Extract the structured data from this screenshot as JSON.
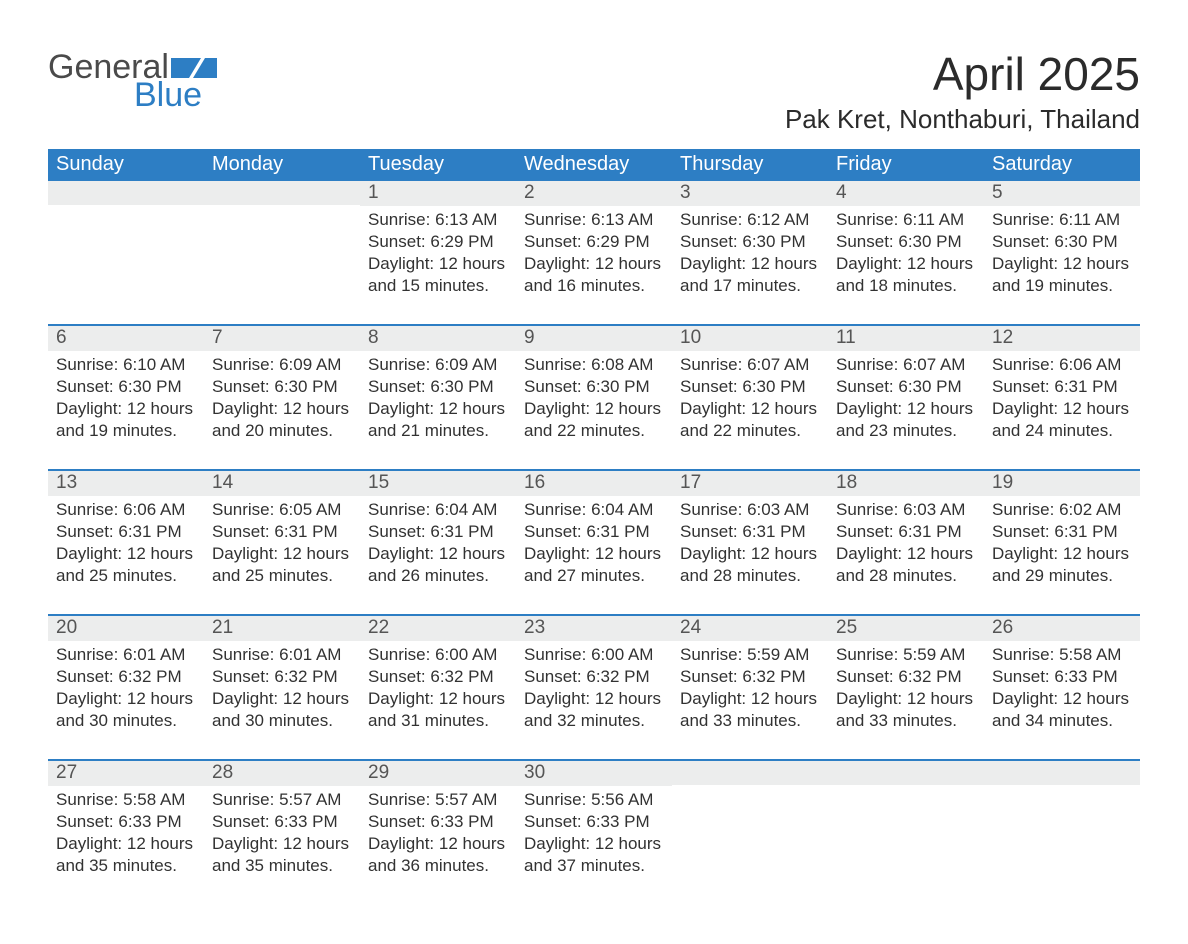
{
  "colors": {
    "blue_header": "#2d7ec4",
    "blue_accent": "#2d7ec4",
    "row_stripe": "#eceded",
    "text": "#3a3a3a",
    "date_text": "#555555",
    "background": "#ffffff",
    "logo_dark": "#4a4a4a",
    "logo_blue": "#2d7ec4"
  },
  "typography": {
    "title_fontsize": 46,
    "location_fontsize": 26,
    "dayheader_fontsize": 20,
    "date_fontsize": 19,
    "body_fontsize": 17,
    "logo_fontsize": 34,
    "font_family": "Segoe UI"
  },
  "logo": {
    "word1": "General",
    "word2": "Blue"
  },
  "header": {
    "title": "April 2025",
    "location": "Pak Kret, Nonthaburi, Thailand"
  },
  "day_names": [
    "Sunday",
    "Monday",
    "Tuesday",
    "Wednesday",
    "Thursday",
    "Friday",
    "Saturday"
  ],
  "labels": {
    "sunrise_prefix": "Sunrise: ",
    "sunset_prefix": "Sunset: ",
    "daylight_prefix": "Daylight: "
  },
  "weeks": [
    [
      null,
      null,
      {
        "date": "1",
        "sunrise": "6:13 AM",
        "sunset": "6:29 PM",
        "daylight": "12 hours and 15 minutes."
      },
      {
        "date": "2",
        "sunrise": "6:13 AM",
        "sunset": "6:29 PM",
        "daylight": "12 hours and 16 minutes."
      },
      {
        "date": "3",
        "sunrise": "6:12 AM",
        "sunset": "6:30 PM",
        "daylight": "12 hours and 17 minutes."
      },
      {
        "date": "4",
        "sunrise": "6:11 AM",
        "sunset": "6:30 PM",
        "daylight": "12 hours and 18 minutes."
      },
      {
        "date": "5",
        "sunrise": "6:11 AM",
        "sunset": "6:30 PM",
        "daylight": "12 hours and 19 minutes."
      }
    ],
    [
      {
        "date": "6",
        "sunrise": "6:10 AM",
        "sunset": "6:30 PM",
        "daylight": "12 hours and 19 minutes."
      },
      {
        "date": "7",
        "sunrise": "6:09 AM",
        "sunset": "6:30 PM",
        "daylight": "12 hours and 20 minutes."
      },
      {
        "date": "8",
        "sunrise": "6:09 AM",
        "sunset": "6:30 PM",
        "daylight": "12 hours and 21 minutes."
      },
      {
        "date": "9",
        "sunrise": "6:08 AM",
        "sunset": "6:30 PM",
        "daylight": "12 hours and 22 minutes."
      },
      {
        "date": "10",
        "sunrise": "6:07 AM",
        "sunset": "6:30 PM",
        "daylight": "12 hours and 22 minutes."
      },
      {
        "date": "11",
        "sunrise": "6:07 AM",
        "sunset": "6:30 PM",
        "daylight": "12 hours and 23 minutes."
      },
      {
        "date": "12",
        "sunrise": "6:06 AM",
        "sunset": "6:31 PM",
        "daylight": "12 hours and 24 minutes."
      }
    ],
    [
      {
        "date": "13",
        "sunrise": "6:06 AM",
        "sunset": "6:31 PM",
        "daylight": "12 hours and 25 minutes."
      },
      {
        "date": "14",
        "sunrise": "6:05 AM",
        "sunset": "6:31 PM",
        "daylight": "12 hours and 25 minutes."
      },
      {
        "date": "15",
        "sunrise": "6:04 AM",
        "sunset": "6:31 PM",
        "daylight": "12 hours and 26 minutes."
      },
      {
        "date": "16",
        "sunrise": "6:04 AM",
        "sunset": "6:31 PM",
        "daylight": "12 hours and 27 minutes."
      },
      {
        "date": "17",
        "sunrise": "6:03 AM",
        "sunset": "6:31 PM",
        "daylight": "12 hours and 28 minutes."
      },
      {
        "date": "18",
        "sunrise": "6:03 AM",
        "sunset": "6:31 PM",
        "daylight": "12 hours and 28 minutes."
      },
      {
        "date": "19",
        "sunrise": "6:02 AM",
        "sunset": "6:31 PM",
        "daylight": "12 hours and 29 minutes."
      }
    ],
    [
      {
        "date": "20",
        "sunrise": "6:01 AM",
        "sunset": "6:32 PM",
        "daylight": "12 hours and 30 minutes."
      },
      {
        "date": "21",
        "sunrise": "6:01 AM",
        "sunset": "6:32 PM",
        "daylight": "12 hours and 30 minutes."
      },
      {
        "date": "22",
        "sunrise": "6:00 AM",
        "sunset": "6:32 PM",
        "daylight": "12 hours and 31 minutes."
      },
      {
        "date": "23",
        "sunrise": "6:00 AM",
        "sunset": "6:32 PM",
        "daylight": "12 hours and 32 minutes."
      },
      {
        "date": "24",
        "sunrise": "5:59 AM",
        "sunset": "6:32 PM",
        "daylight": "12 hours and 33 minutes."
      },
      {
        "date": "25",
        "sunrise": "5:59 AM",
        "sunset": "6:32 PM",
        "daylight": "12 hours and 33 minutes."
      },
      {
        "date": "26",
        "sunrise": "5:58 AM",
        "sunset": "6:33 PM",
        "daylight": "12 hours and 34 minutes."
      }
    ],
    [
      {
        "date": "27",
        "sunrise": "5:58 AM",
        "sunset": "6:33 PM",
        "daylight": "12 hours and 35 minutes."
      },
      {
        "date": "28",
        "sunrise": "5:57 AM",
        "sunset": "6:33 PM",
        "daylight": "12 hours and 35 minutes."
      },
      {
        "date": "29",
        "sunrise": "5:57 AM",
        "sunset": "6:33 PM",
        "daylight": "12 hours and 36 minutes."
      },
      {
        "date": "30",
        "sunrise": "5:56 AM",
        "sunset": "6:33 PM",
        "daylight": "12 hours and 37 minutes."
      },
      null,
      null,
      null
    ]
  ]
}
